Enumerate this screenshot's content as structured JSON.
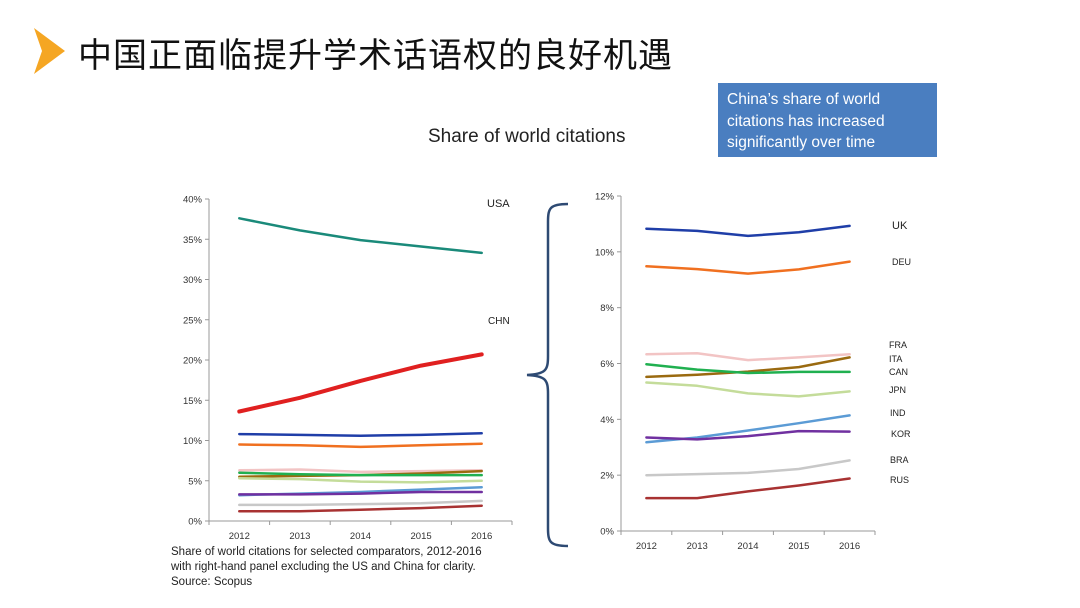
{
  "slide": {
    "title": "中国正面临提升学术话语权的良好机遇",
    "callout": "China’s share of world citations has increased significantly over time",
    "chart_heading": "Share of world citations",
    "caption": [
      "Share of world citations for selected comparators, 2012-2016",
      "with right-hand panel excluding the US and China for clarity.",
      "Source: Scopus"
    ]
  },
  "colors": {
    "accent_arrow": "#f5a623",
    "callout_bg": "#4a7ec0",
    "brace": "#2e4a73"
  },
  "chart_data": [
    {
      "type": "line",
      "x": [
        "2012",
        "2013",
        "2014",
        "2015",
        "2016"
      ],
      "ylim": [
        0,
        0.4
      ],
      "yticks": [
        "0%",
        "5%",
        "10%",
        "15%",
        "20%",
        "25%",
        "30%",
        "35%",
        "40%"
      ],
      "grid": false,
      "series": [
        {
          "name": "USA",
          "color": "#1a8a7a",
          "width": 2.5,
          "values": [
            0.376,
            0.361,
            0.349,
            0.341,
            0.333
          ]
        },
        {
          "name": "CHN",
          "color": "#e02020",
          "width": 4,
          "values": [
            0.136,
            0.153,
            0.174,
            0.193,
            0.207
          ]
        },
        {
          "name": "UK",
          "color": "#1f3ea8",
          "width": 2.5,
          "values": [
            0.108,
            0.107,
            0.106,
            0.107,
            0.109
          ]
        },
        {
          "name": "DEU",
          "color": "#f07020",
          "width": 2.5,
          "values": [
            0.095,
            0.094,
            0.092,
            0.094,
            0.096
          ]
        },
        {
          "name": "FRA",
          "color": "#f2c4c4",
          "width": 2.5,
          "values": [
            0.063,
            0.064,
            0.061,
            0.062,
            0.063
          ]
        },
        {
          "name": "ITA",
          "color": "#9a6a10",
          "width": 2.5,
          "values": [
            0.055,
            0.056,
            0.057,
            0.059,
            0.062
          ]
        },
        {
          "name": "CAN",
          "color": "#20b050",
          "width": 2.5,
          "values": [
            0.06,
            0.058,
            0.057,
            0.057,
            0.057
          ]
        },
        {
          "name": "JPN",
          "color": "#c4dc9a",
          "width": 2.5,
          "values": [
            0.053,
            0.052,
            0.049,
            0.048,
            0.05
          ]
        },
        {
          "name": "IND",
          "color": "#5b9bd5",
          "width": 2.5,
          "values": [
            0.032,
            0.034,
            0.036,
            0.039,
            0.042
          ]
        },
        {
          "name": "KOR",
          "color": "#7030a0",
          "width": 2.5,
          "values": [
            0.033,
            0.033,
            0.034,
            0.036,
            0.036
          ]
        },
        {
          "name": "BRA",
          "color": "#c8c8c8",
          "width": 2.5,
          "values": [
            0.02,
            0.02,
            0.021,
            0.022,
            0.025
          ]
        },
        {
          "name": "RUS",
          "color": "#a83232",
          "width": 2.5,
          "values": [
            0.012,
            0.012,
            0.014,
            0.016,
            0.019
          ]
        }
      ],
      "labels": [
        "USA",
        "CHN"
      ]
    },
    {
      "type": "line",
      "x": [
        "2012",
        "2013",
        "2014",
        "2015",
        "2016"
      ],
      "ylim": [
        0,
        0.12
      ],
      "yticks": [
        "0%",
        "2%",
        "4%",
        "6%",
        "8%",
        "10%",
        "12%"
      ],
      "grid": false,
      "series": [
        {
          "name": "UK",
          "color": "#1f3ea8",
          "width": 2.5,
          "values": [
            0.1083,
            0.1075,
            0.1057,
            0.107,
            0.1093
          ]
        },
        {
          "name": "DEU",
          "color": "#f07020",
          "width": 2.5,
          "values": [
            0.0948,
            0.0938,
            0.0922,
            0.0937,
            0.0965
          ]
        },
        {
          "name": "FRA",
          "color": "#f2c4c4",
          "width": 2.5,
          "values": [
            0.0633,
            0.0637,
            0.0612,
            0.0622,
            0.0633
          ]
        },
        {
          "name": "ITA",
          "color": "#9a6a10",
          "width": 2.5,
          "values": [
            0.0552,
            0.056,
            0.0571,
            0.0587,
            0.0622
          ]
        },
        {
          "name": "CAN",
          "color": "#20b050",
          "width": 2.5,
          "values": [
            0.0597,
            0.0578,
            0.0566,
            0.057,
            0.057
          ]
        },
        {
          "name": "JPN",
          "color": "#c4dc9a",
          "width": 2.5,
          "values": [
            0.0532,
            0.052,
            0.0493,
            0.0482,
            0.05
          ]
        },
        {
          "name": "IND",
          "color": "#5b9bd5",
          "width": 2.5,
          "values": [
            0.0318,
            0.0335,
            0.036,
            0.0386,
            0.0414
          ]
        },
        {
          "name": "KOR",
          "color": "#7030a0",
          "width": 2.5,
          "values": [
            0.0335,
            0.0328,
            0.034,
            0.0358,
            0.0356
          ]
        },
        {
          "name": "BRA",
          "color": "#c8c8c8",
          "width": 2.5,
          "values": [
            0.02,
            0.0204,
            0.0208,
            0.0222,
            0.0253
          ]
        },
        {
          "name": "RUS",
          "color": "#a83232",
          "width": 2.5,
          "values": [
            0.0118,
            0.0118,
            0.0142,
            0.0163,
            0.0188
          ]
        }
      ],
      "labels": [
        "UK",
        "DEU",
        "FRA",
        "ITA",
        "CAN",
        "JPN",
        "IND",
        "KOR",
        "BRA",
        "RUS"
      ]
    }
  ]
}
